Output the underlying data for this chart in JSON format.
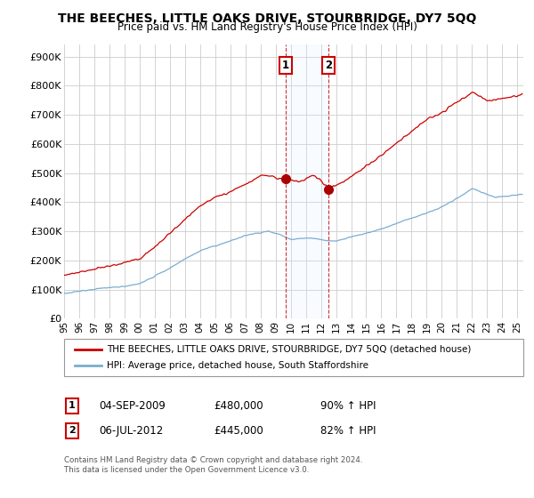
{
  "title": "THE BEECHES, LITTLE OAKS DRIVE, STOURBRIDGE, DY7 5QQ",
  "subtitle": "Price paid vs. HM Land Registry's House Price Index (HPI)",
  "ylabel_ticks": [
    "£0",
    "£100K",
    "£200K",
    "£300K",
    "£400K",
    "£500K",
    "£600K",
    "£700K",
    "£800K",
    "£900K"
  ],
  "ytick_vals": [
    0,
    100000,
    200000,
    300000,
    400000,
    500000,
    600000,
    700000,
    800000,
    900000
  ],
  "ylim": [
    0,
    940000
  ],
  "xlim_start": 1995.0,
  "xlim_end": 2025.4,
  "sale1_x": 2009.67,
  "sale1_y": 480000,
  "sale1_label": "1",
  "sale1_date": "04-SEP-2009",
  "sale1_price": "£480,000",
  "sale1_hpi": "90% ↑ HPI",
  "sale2_x": 2012.5,
  "sale2_y": 445000,
  "sale2_label": "2",
  "sale2_date": "06-JUL-2012",
  "sale2_price": "£445,000",
  "sale2_hpi": "82% ↑ HPI",
  "red_line_color": "#cc0000",
  "blue_line_color": "#7aadcf",
  "sale_marker_color": "#aa0000",
  "shaded_color": "#ddeeff",
  "vline_color": "#cc0000",
  "legend1_label": "THE BEECHES, LITTLE OAKS DRIVE, STOURBRIDGE, DY7 5QQ (detached house)",
  "legend2_label": "HPI: Average price, detached house, South Staffordshire",
  "footer1": "Contains HM Land Registry data © Crown copyright and database right 2024.",
  "footer2": "This data is licensed under the Open Government Licence v3.0."
}
